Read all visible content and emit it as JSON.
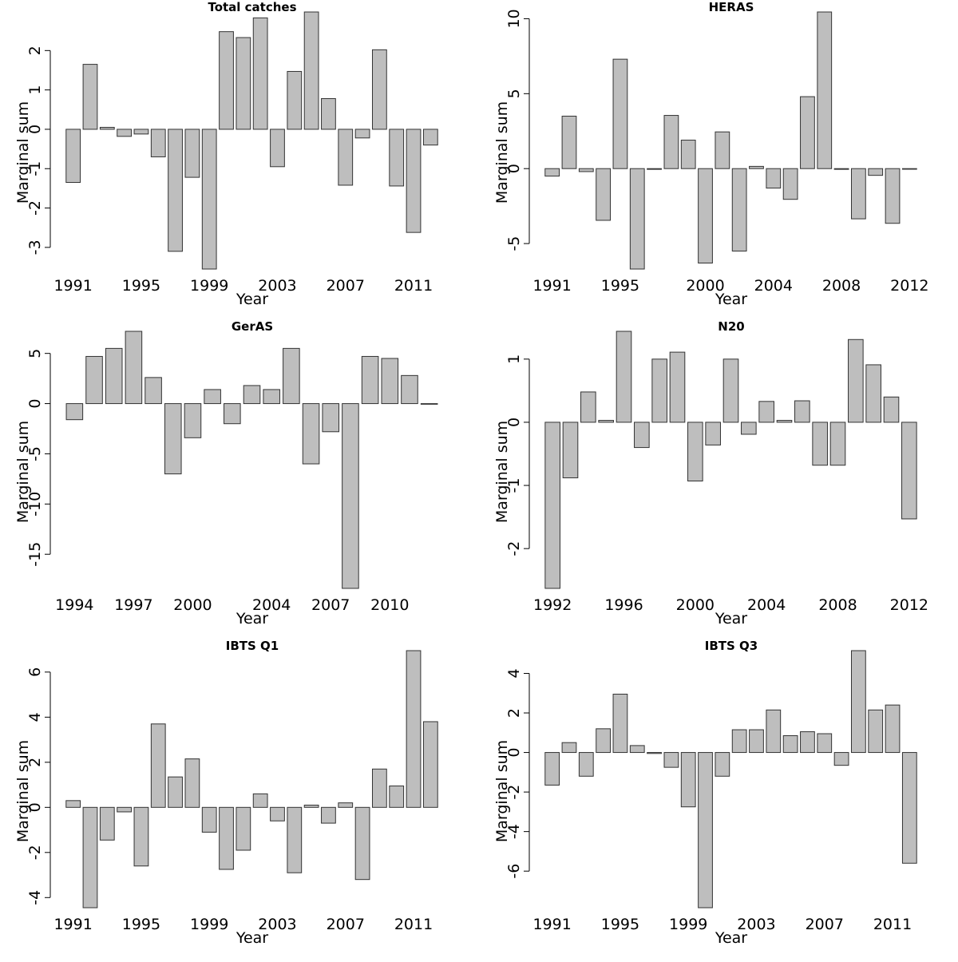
{
  "chart_data": [
    {
      "type": "bar",
      "title": "Total catches",
      "xlabel": "Year",
      "ylabel": "Marginal sum",
      "categories": [
        "1991",
        "1992",
        "1993",
        "1994",
        "1995",
        "1996",
        "1997",
        "1998",
        "1999",
        "2000",
        "2001",
        "2002",
        "2003",
        "2004",
        "2005",
        "2006",
        "2007",
        "2008",
        "2009",
        "2010",
        "2011",
        "2012"
      ],
      "values": [
        -1.35,
        1.65,
        0.05,
        -0.18,
        -0.12,
        -0.7,
        -3.1,
        -1.22,
        -3.55,
        2.48,
        2.33,
        2.83,
        -0.95,
        1.47,
        2.98,
        0.78,
        -1.42,
        -0.22,
        2.02,
        -1.44,
        -2.62,
        -0.4
      ],
      "x_tick_labels": [
        "1991",
        "1995",
        "1999",
        "2003",
        "2007",
        "2011"
      ],
      "y_ticks": [
        -3,
        -2,
        -1,
        0,
        1,
        2
      ],
      "ylim": [
        -3.55,
        2.98
      ]
    },
    {
      "type": "bar",
      "title": "HERAS",
      "xlabel": "Year",
      "ylabel": "Marginal sum",
      "categories": [
        "1991",
        "1992",
        "1993",
        "1994",
        "1995",
        "1996",
        "1997",
        "1998",
        "1999",
        "2000",
        "2001",
        "2002",
        "2003",
        "2004",
        "2005",
        "2006",
        "2007",
        "2008",
        "2009",
        "2010",
        "2011",
        "2012"
      ],
      "values": [
        -0.5,
        3.5,
        -0.2,
        -3.45,
        7.3,
        -6.7,
        -0.05,
        3.55,
        1.9,
        -6.3,
        2.45,
        -5.5,
        0.15,
        -1.3,
        -2.05,
        4.8,
        10.45,
        -0.05,
        -3.35,
        -0.45,
        -3.65,
        0
      ],
      "x_tick_labels": [
        "1991",
        "1995",
        "2000",
        "2004",
        "2008",
        "2012"
      ],
      "y_ticks": [
        -5,
        0,
        5,
        10
      ],
      "ylim": [
        -6.7,
        10.45
      ]
    },
    {
      "type": "bar",
      "title": "GerAS",
      "xlabel": "Year",
      "ylabel": "Marginal sum",
      "categories": [
        "1994",
        "1995",
        "1996",
        "1997",
        "1998",
        "1999",
        "2000",
        "2001",
        "2002",
        "2003",
        "2004",
        "2005",
        "2006",
        "2007",
        "2008",
        "2009",
        "2010",
        "2011",
        "2012"
      ],
      "values": [
        -1.6,
        4.7,
        5.5,
        7.2,
        2.6,
        -7.0,
        -3.4,
        1.4,
        -2.0,
        1.8,
        1.4,
        5.5,
        -6.0,
        -2.8,
        -18.4,
        4.7,
        4.5,
        2.8,
        0
      ],
      "x_tick_labels": [
        "1994",
        "1997",
        "2000",
        "2004",
        "2007",
        "2010"
      ],
      "y_ticks": [
        -15,
        -10,
        -5,
        0,
        5
      ],
      "ylim": [
        -18.4,
        7.2
      ]
    },
    {
      "type": "bar",
      "title": "N20",
      "xlabel": "Year",
      "ylabel": "Marginal sum",
      "categories": [
        "1992",
        "1993",
        "1994",
        "1995",
        "1996",
        "1997",
        "1998",
        "1999",
        "2000",
        "2001",
        "2002",
        "2003",
        "2004",
        "2005",
        "2006",
        "2007",
        "2008",
        "2009",
        "2010",
        "2011",
        "2012"
      ],
      "values": [
        -2.63,
        -0.88,
        0.48,
        0.03,
        1.44,
        -0.4,
        1.0,
        1.11,
        -0.93,
        -0.36,
        1.0,
        -0.19,
        0.33,
        0.03,
        0.34,
        -0.68,
        -0.68,
        1.31,
        0.91,
        0.4,
        -1.53
      ],
      "x_tick_labels": [
        "1992",
        "1996",
        "2000",
        "2004",
        "2008",
        "2012"
      ],
      "y_ticks": [
        -2,
        -1,
        0,
        1
      ],
      "ylim": [
        -2.63,
        1.44
      ]
    },
    {
      "type": "bar",
      "title": "IBTS Q1",
      "xlabel": "Year",
      "ylabel": "Marginal sum",
      "categories": [
        "1991",
        "1992",
        "1993",
        "1994",
        "1995",
        "1996",
        "1997",
        "1998",
        "1999",
        "2000",
        "2001",
        "2002",
        "2003",
        "2004",
        "2005",
        "2006",
        "2007",
        "2008",
        "2009",
        "2010",
        "2011",
        "2012"
      ],
      "values": [
        0.3,
        -4.45,
        -1.45,
        -0.2,
        -2.6,
        3.7,
        1.35,
        2.15,
        -1.1,
        -2.75,
        -1.9,
        0.6,
        -0.6,
        -2.9,
        0.1,
        -0.7,
        0.2,
        -3.2,
        1.7,
        0.95,
        6.95,
        3.8
      ],
      "x_tick_labels": [
        "1991",
        "1995",
        "1999",
        "2003",
        "2007",
        "2011"
      ],
      "y_ticks": [
        -4,
        -2,
        0,
        2,
        4,
        6
      ],
      "ylim": [
        -4.45,
        6.95
      ]
    },
    {
      "type": "bar",
      "title": "IBTS Q3",
      "xlabel": "Year",
      "ylabel": "Marginal sum",
      "categories": [
        "1991",
        "1992",
        "1993",
        "1994",
        "1995",
        "1996",
        "1997",
        "1998",
        "1999",
        "2000",
        "2001",
        "2002",
        "2003",
        "2004",
        "2005",
        "2006",
        "2007",
        "2008",
        "2009",
        "2010",
        "2011",
        "2012"
      ],
      "values": [
        -1.65,
        0.5,
        -1.2,
        1.2,
        2.95,
        0.35,
        -0.05,
        -0.75,
        -2.75,
        -7.85,
        -1.2,
        1.15,
        1.15,
        2.15,
        0.85,
        1.05,
        0.95,
        -0.65,
        5.15,
        2.15,
        2.4,
        -5.6
      ],
      "x_tick_labels": [
        "1991",
        "1995",
        "1999",
        "2003",
        "2007",
        "2011"
      ],
      "y_ticks": [
        -6,
        -4,
        -2,
        0,
        2,
        4
      ],
      "ylim": [
        -7.85,
        5.15
      ]
    }
  ]
}
